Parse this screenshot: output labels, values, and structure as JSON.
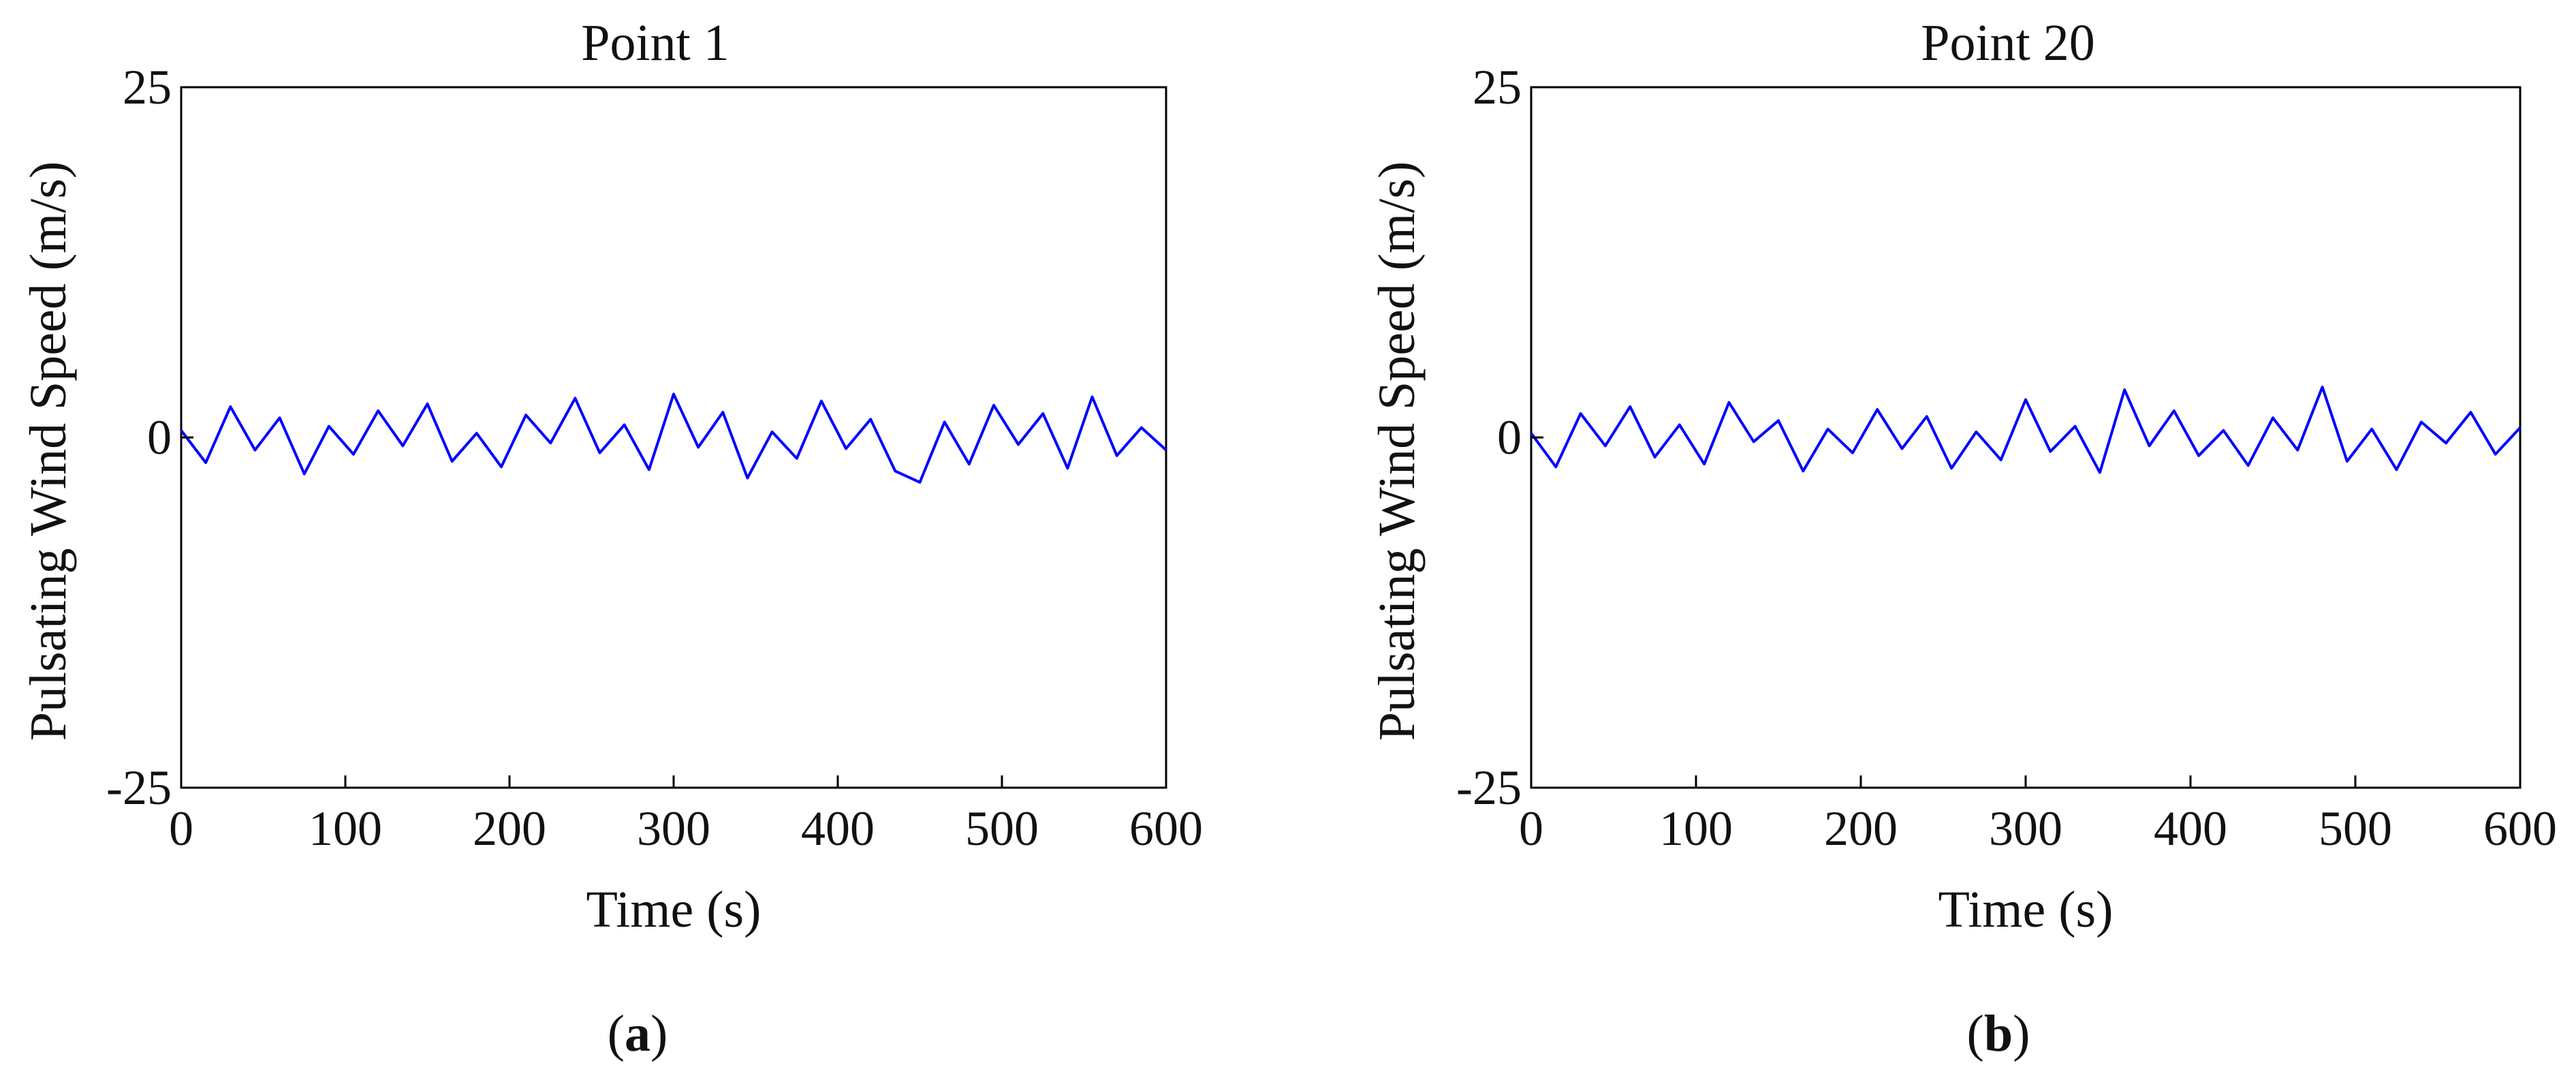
{
  "colors": {
    "series": "#0000ff",
    "axis": "#000000",
    "text": "#111111"
  },
  "panels": [
    {
      "sub_label": {
        "open": "(",
        "letter": "a",
        "close": ")"
      },
      "chart_data": {
        "type": "line",
        "title": "Point 1",
        "xlabel": "Time (s)",
        "ylabel": "Pulsating Wind Speed (m/s)",
        "xlim": [
          0,
          600
        ],
        "ylim": [
          -25,
          25
        ],
        "x_ticks": [
          "0",
          "100",
          "200",
          "300",
          "400",
          "500",
          "600"
        ],
        "y_ticks": [
          "-25",
          "0",
          "25"
        ],
        "grid": false,
        "legend": "none",
        "series": [
          {
            "x": [
              0,
              15,
              30,
              45,
              60,
              75,
              90,
              105,
              120,
              135,
              150,
              165,
              180,
              195,
              210,
              225,
              240,
              255,
              270,
              285,
              300,
              315,
              330,
              345,
              360,
              375,
              390,
              405,
              420,
              435,
              450,
              465,
              480,
              495,
              510,
              525,
              540,
              555,
              570,
              585,
              600
            ],
            "y": [
              0.5,
              -1.8,
              2.2,
              -0.9,
              1.4,
              -2.6,
              0.8,
              -1.2,
              1.9,
              -0.6,
              2.4,
              -1.7,
              0.3,
              -2.1,
              1.6,
              -0.4,
              2.8,
              -1.1,
              0.9,
              -2.3,
              3.1,
              -0.7,
              1.8,
              -2.9,
              0.4,
              -1.5,
              2.6,
              -0.8,
              1.3,
              -2.4,
              -3.2,
              1.1,
              -1.9,
              2.3,
              -0.5,
              1.7,
              -2.2,
              2.9,
              -1.3,
              0.7,
              -0.9
            ]
          }
        ]
      }
    },
    {
      "sub_label": {
        "open": "(",
        "letter": "b",
        "close": ")"
      },
      "chart_data": {
        "type": "line",
        "title": "Point 20",
        "xlabel": "Time (s)",
        "ylabel": "Pulsating Wind Speed (m/s)",
        "xlim": [
          0,
          600
        ],
        "ylim": [
          -25,
          25
        ],
        "x_ticks": [
          "0",
          "100",
          "200",
          "300",
          "400",
          "500",
          "600"
        ],
        "y_ticks": [
          "-25",
          "0",
          "25"
        ],
        "grid": false,
        "legend": "none",
        "series": [
          {
            "x": [
              0,
              15,
              30,
              45,
              60,
              75,
              90,
              105,
              120,
              135,
              150,
              165,
              180,
              195,
              210,
              225,
              240,
              255,
              270,
              285,
              300,
              315,
              330,
              345,
              360,
              375,
              390,
              405,
              420,
              435,
              450,
              465,
              480,
              495,
              510,
              525,
              540,
              555,
              570,
              585,
              600
            ],
            "y": [
              0.3,
              -2.1,
              1.7,
              -0.6,
              2.2,
              -1.4,
              0.9,
              -1.9,
              2.5,
              -0.3,
              1.2,
              -2.4,
              0.6,
              -1.1,
              2.0,
              -0.8,
              1.5,
              -2.2,
              0.4,
              -1.6,
              2.7,
              -1.0,
              0.8,
              -2.5,
              3.4,
              -0.6,
              1.9,
              -1.3,
              0.5,
              -2.0,
              1.4,
              -0.9,
              3.6,
              -1.7,
              0.6,
              -2.3,
              1.1,
              -0.4,
              1.8,
              -1.2,
              0.7
            ]
          }
        ]
      }
    }
  ]
}
